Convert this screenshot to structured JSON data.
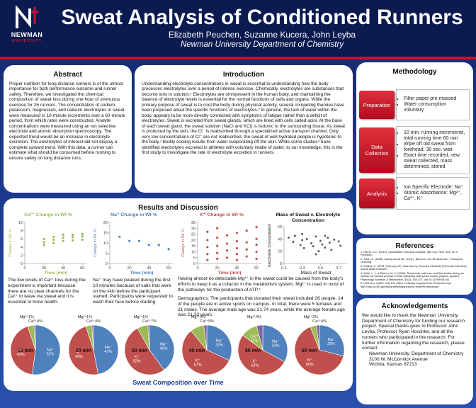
{
  "header": {
    "logo_top": "NEWMAN",
    "logo_bottom": "UNIVERSITY",
    "title": "Sweat Analysis of Conditioned Runners",
    "authors": "Elizabeth Peuchen, Suzanne Kucera, John Leyba",
    "department": "Newman University Department of Chemistry"
  },
  "abstract": {
    "heading": "Abstract",
    "text": "Proper nutrition for long distance runners is of the utmost importance for both performance outcome and runner safety. Therefore, we investigated the chemical composition of sweat loss during one hour of strenuous exercise for 26 runners. The concentration of sodium, potassium, magnesium, and calcium electrolytes in sweat were measured in 10-minute increments over a 60-minute period, from which rates were constructed. Analyte concentrations were measured using an ion selective electrode and atomic absorption spectroscopy. The expected trend would be an increase in electrolyte excretion. The electrolytes of interest did not display a complete upward trend. With this data, a runner can estimate what should be consumed before running to ensure safety on long distance runs."
  },
  "introduction": {
    "heading": "Introduction",
    "text": "Understanding electrolyte concentrations in sweat is essential to understanding how the body processes electrolytes over a period of intense exercise. Chemically, electrolytes are substances that become ions in solution.¹ Electrolytes are omnipresent in the human body, and maintaining the balance of electrolyte levels is essential for the normal functions of cells and organs. While the primary purpose of sweat is to cool the body during physical activity, several competing theories have been proposed about the specific functions of electrolytes.² In general, the lack of water within the body, appears to be more directly connected with symptoms of fatigue rather than a deficit of electrolytes. Sweat is excreted from sweat glands, which are lined with cells called acini. At the base of each sweat gland, the sweat solution (NaCl and KCl) is isotonic to the surrounding tissue. As sweat is produced by the skin, the Cl⁻ is reabsorbed through a specialized active transport channel. Only very low concentrations of Cl⁻ are not reabsorbed, the sweat of well hydrated people is hypotonic to the body.³ Bodily cooling results from water evaporating off the skin. While some studies⁴ have identified electrolytes excreted in athletes with voluntary intake of water, to our knowledge, this is the first study to investigate the rate of electrolyte excretion in runners."
  },
  "methodology": {
    "heading": "Methodology",
    "steps": [
      {
        "label": "Preparation",
        "items": [
          "Filter paper pre-massed",
          "Water consumption voluntary"
        ]
      },
      {
        "label": "Data Collection",
        "items": [
          "10 min. running increments, total running time 60 min",
          "Wipe off old sweat from forehead, 30 sec. wait",
          "Exact time recorded, new sweat collected, mass determined, stored"
        ]
      },
      {
        "label": "Analysis",
        "items": [
          "Ion Specific Electrode: Na⁺",
          "Atomic Absorbance: Mg²⁺, Ca²⁺, K⁺"
        ]
      }
    ]
  },
  "references": {
    "heading": "References",
    "items": [
      "1. Harris, D.C. (2010). Quantitative chemical analysis. (8th ed.). New York: W. H. Freeman.",
      "2. Tobin, A. (2008). Asking about life. (3 ed.). Belmont, CA: Brooks/Cole - Thompson Learning.",
      "3. McNeil, C. (2013, February 22). Interview by Peuchen Elizabeth [Personal Interview]. Sweat study research.",
      "4. Epfel, L. L. & Palmer, M. S. (2008). Sweat rate, salt loss, and fluid intake during an intense ice hockey practice in elite Canadian male junior hockey players. Applied Physiology, Nutrition & Metabolism, 33(2), 263-271. doi:10.1139/H08-011",
      "5. USA.Gov. (2009, July 13). Office of dietary supplements. Retrieved from http://ods.od.nih.gov/factsheets/Magnesium-HealthProfessional/"
    ]
  },
  "acknowledgements": {
    "heading": "Acknowledgements",
    "text": "We would like to thank the Newman University Department of Chemistry for funding our research project. Special thanks goes to Professor John Leyba, Professor Ryan Hoschke, and all the runners who participated in the research. For further information regarding the research, please contact:",
    "address": [
      "Newman University, Department of Chemistry",
      "3100 W. McCormick Avenue",
      "Wichita, Kansas 67213"
    ]
  },
  "results": {
    "heading": "Results and Discussion",
    "footer": "Sweat Composition over Time",
    "paragraphs": [
      "The low levels of Ca²⁺ loss during the experiment is important because there are no clear channels for the Ca²⁺ to leave via sweat and it is essential to bone health.",
      "Na⁺ may have peaked during the first 10 minutes because of salts that were on the skin before the participant started. Participants were requested to wash their face before starting.",
      "Having almost no detectable Mg²⁺ in the sweat could be caused from the body's efforts to keep it as a cofactor in the metabolism system. Mg²⁺ is used in most of the pathways for the production of ATP.⁵",
      "Demographics: The participants that donated their sweat included 26 people, 14 of the people are in active sports on campus. In total, there were 5 females and 21 males. The average male age was 21.74 years, while the average female age was 21.33 years."
    ],
    "charts": [
      {
        "type": "scatter",
        "title": "Ca²⁺ Change in Wt %",
        "color": "#9bbb59",
        "x_label": "Time (min)",
        "y_label": "Change in Wt %",
        "x": [
          20,
          20,
          20,
          30,
          30,
          30,
          40,
          40,
          40,
          50,
          50,
          50,
          60,
          60,
          60
        ],
        "values": [
          4.5,
          5.2,
          6,
          5,
          5.8,
          6.5,
          5.5,
          6.3,
          7,
          5.6,
          6.4,
          7,
          5.8,
          6.6,
          7.2
        ],
        "xlim": [
          0,
          65
        ],
        "ylim": [
          0,
          10
        ],
        "xticks": [
          0,
          20,
          40,
          60
        ],
        "yticks": [
          0,
          2,
          4,
          6,
          8,
          10
        ]
      },
      {
        "type": "scatter",
        "title": "Na⁺ Change in Wt %",
        "color": "#4f81bd",
        "x_label": "Time (min)",
        "y_label": "Change in Wt %",
        "x": [
          10,
          20,
          30,
          40,
          50,
          60
        ],
        "values": [
          13,
          11,
          11,
          9,
          9,
          7
        ],
        "xlim": [
          0,
          65
        ],
        "ylim": [
          0,
          20
        ],
        "xticks": [
          0,
          20,
          40,
          60
        ],
        "yticks": [
          0,
          5,
          10,
          15,
          20
        ]
      },
      {
        "type": "scatter",
        "title": "K⁺ Change in Wt %",
        "color": "#c0504d",
        "x_label": "Time (min)",
        "y_label": "Change in Wt %",
        "x": [
          10,
          10,
          10,
          10,
          10,
          20,
          20,
          20,
          20,
          20,
          30,
          30,
          30,
          30,
          40,
          40,
          40,
          40,
          40,
          50,
          50,
          50,
          50,
          60,
          60,
          60,
          60,
          60
        ],
        "values": [
          3,
          8,
          14,
          20,
          27,
          4,
          9,
          15,
          22,
          30,
          5,
          11,
          17,
          24,
          3,
          8,
          13,
          19,
          26,
          6,
          12,
          18,
          28,
          4,
          10,
          16,
          21,
          31
        ],
        "xlim": [
          0,
          65
        ],
        "ylim": [
          0,
          35
        ],
        "xticks": [
          0,
          20,
          40,
          60
        ],
        "yticks": [
          0,
          5,
          10,
          15,
          20,
          25,
          30,
          35
        ]
      },
      {
        "type": "scatter",
        "title": "Mass of Sweat v. Electrolyte Concentration",
        "color": "#555555",
        "x_label": "Mass of Sweat",
        "y_label": "Electrolyte Concentration",
        "x": [
          0.15,
          0.2,
          0.22,
          0.28,
          0.3,
          0.32,
          0.35,
          0.4,
          0.42,
          0.45,
          0.48,
          0.5,
          0.52,
          0.55,
          0.58,
          0.6,
          0.62,
          0.65,
          0.7,
          0.72,
          0.3,
          0.45,
          0.55
        ],
        "values": [
          42,
          35,
          45,
          30,
          38,
          25,
          40,
          33,
          28,
          44,
          20,
          37,
          31,
          26,
          42,
          34,
          22,
          39,
          36,
          29,
          48,
          15,
          45
        ],
        "xlim": [
          0.1,
          0.8
        ],
        "ylim": [
          0,
          60
        ],
        "xticks": [
          0.1,
          0.3,
          0.5,
          0.7
        ],
        "yticks": [
          0,
          20,
          40,
          60
        ]
      }
    ],
    "pies": [
      {
        "type": "pie",
        "title": "10 min",
        "categories": [
          "Na⁺",
          "K⁺",
          "Ca²⁺",
          "Mg²⁺"
        ],
        "values": [
          52,
          43,
          4,
          1
        ],
        "value_labels": [
          "52%",
          "43%",
          "4%",
          "1%"
        ],
        "colors": [
          "#4f81bd",
          "#c0504d",
          "#9bbb59",
          "#8064a2"
        ]
      },
      {
        "type": "pie",
        "title": "20 min",
        "categories": [
          "Na⁺",
          "K⁺",
          "Ca²⁺",
          "Mg²⁺"
        ],
        "values": [
          47,
          48,
          4,
          1
        ],
        "value_labels": [
          "47%",
          "48%",
          "4%",
          "1%"
        ],
        "colors": [
          "#4f81bd",
          "#c0504d",
          "#9bbb59",
          "#8064a2"
        ]
      },
      {
        "type": "pie",
        "title": "30 min",
        "categories": [
          "Na⁺",
          "K⁺",
          "Ca²⁺",
          "Mg²⁺"
        ],
        "values": [
          40,
          52,
          7,
          1
        ],
        "value_labels": [
          "40%",
          "52%",
          "7%",
          "1%"
        ],
        "colors": [
          "#4f81bd",
          "#c0504d",
          "#9bbb59",
          "#8064a2"
        ]
      },
      {
        "type": "pie",
        "title": "40 min",
        "categories": [
          "Na⁺",
          "K⁺",
          "Ca²⁺",
          "Mg²⁺"
        ],
        "values": [
          32,
          57,
          9,
          2
        ],
        "value_labels": [
          "32%",
          "57%",
          "9%",
          "2%"
        ],
        "colors": [
          "#4f81bd",
          "#c0504d",
          "#9bbb59",
          "#8064a2"
        ]
      },
      {
        "type": "pie",
        "title": "50 min",
        "categories": [
          "Na⁺",
          "K⁺",
          "Ca²⁺",
          "Mg²⁺"
        ],
        "values": [
          33,
          52,
          11,
          4
        ],
        "value_labels": [
          "33%",
          "52%",
          "11%",
          "4%"
        ],
        "colors": [
          "#4f81bd",
          "#c0504d",
          "#9bbb59",
          "#8064a2"
        ]
      },
      {
        "type": "pie",
        "title": "60 min",
        "categories": [
          "Na⁺",
          "K⁺",
          "Ca²⁺",
          "Mg²⁺"
        ],
        "values": [
          29,
          65,
          4,
          2
        ],
        "value_labels": [
          "29%",
          "65%",
          "4%",
          "2%"
        ],
        "colors": [
          "#4f81bd",
          "#c0504d",
          "#9bbb59",
          "#8064a2"
        ]
      }
    ]
  }
}
